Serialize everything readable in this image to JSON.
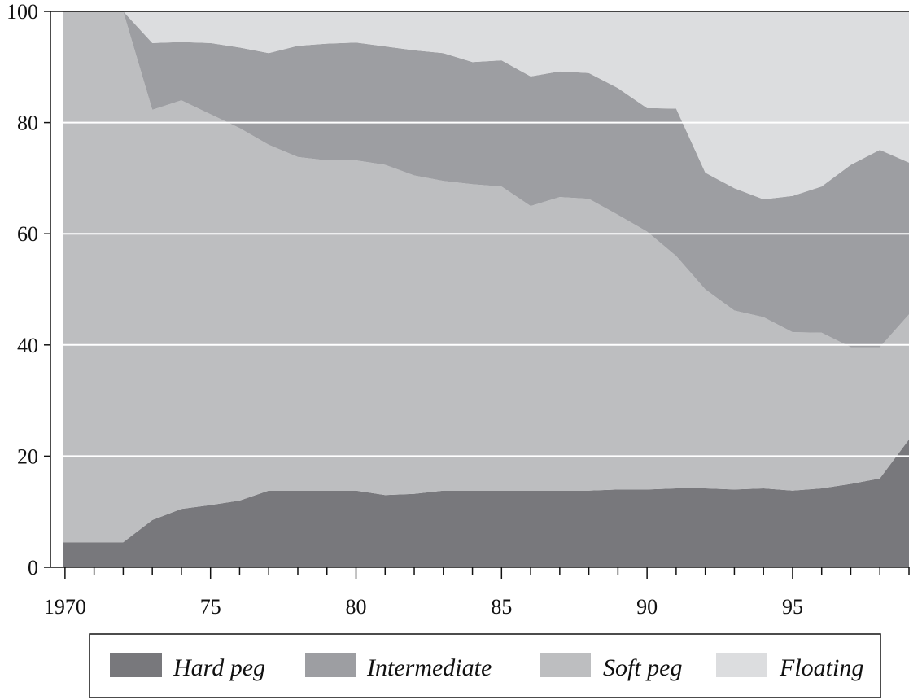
{
  "chart_data": {
    "type": "area",
    "stacked": true,
    "x": [
      1970,
      1971,
      1972,
      1973,
      1974,
      1975,
      1976,
      1977,
      1978,
      1979,
      1980,
      1981,
      1982,
      1983,
      1984,
      1985,
      1986,
      1987,
      1988,
      1989,
      1990,
      1991,
      1992,
      1993,
      1994,
      1995,
      1996,
      1997,
      1998,
      1999
    ],
    "series": [
      {
        "name": "Hard peg",
        "color": "#78787c",
        "values": [
          4.5,
          4.5,
          4.5,
          8.5,
          10.5,
          11.2,
          12,
          13.8,
          13.8,
          13.8,
          13.8,
          13,
          13.2,
          13.8,
          13.8,
          13.8,
          13.8,
          13.8,
          13.8,
          14,
          14,
          14.2,
          14.2,
          14,
          14.2,
          13.8,
          14.2,
          15,
          16,
          23
        ]
      },
      {
        "name": "Soft peg",
        "color": "#bdbec0",
        "values": [
          95.5,
          95.5,
          95.5,
          73.8,
          73.5,
          70.3,
          67,
          62.2,
          60,
          59.4,
          59.4,
          59.4,
          57.3,
          55.7,
          55.1,
          54.7,
          51.2,
          52.8,
          52.5,
          49.4,
          46.4,
          41.8,
          35.8,
          32.2,
          30.8,
          28.5,
          28,
          24.6,
          23.6,
          22.5
        ]
      },
      {
        "name": "Intermediate",
        "color": "#9d9ea2",
        "values": [
          0,
          0,
          0,
          12,
          10.5,
          12.8,
          14.5,
          16.5,
          20,
          21,
          21.2,
          21.3,
          22.5,
          23,
          22,
          22.7,
          23.3,
          22.6,
          22.6,
          22.8,
          22.2,
          26.5,
          21,
          22,
          21.2,
          24.5,
          26.3,
          32.8,
          35.5,
          27.3
        ]
      },
      {
        "name": "Floating",
        "color": "#dcdddf",
        "values": [
          0,
          0,
          0,
          5.7,
          5.5,
          5.7,
          6.5,
          7.5,
          6.2,
          5.8,
          5.6,
          6.3,
          7,
          7.5,
          9.1,
          8.8,
          11.7,
          10.8,
          11.1,
          13.8,
          17.4,
          17.5,
          29,
          31.8,
          33.8,
          33.2,
          31.5,
          27.6,
          24.9,
          27.2
        ]
      }
    ],
    "ylim": [
      0,
      100
    ],
    "xlim": [
      1969.5,
      1999
    ],
    "yticks": [
      "0",
      "20",
      "40",
      "60",
      "80",
      "100"
    ],
    "xticks": [
      "1970",
      "75",
      "80",
      "85",
      "90",
      "95"
    ],
    "grid": "horizontal",
    "legend": {
      "position": "bottom",
      "entries": [
        "Hard peg",
        "Intermediate",
        "Soft peg",
        "Floating"
      ]
    }
  }
}
